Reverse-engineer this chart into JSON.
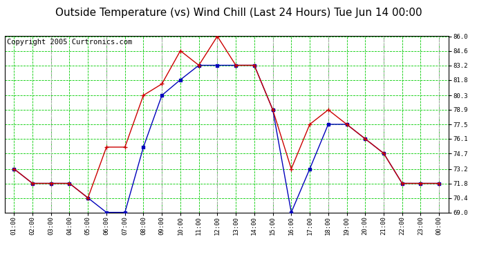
{
  "title": "Outside Temperature (vs) Wind Chill (Last 24 Hours) Tue Jun 14 00:00",
  "copyright": "Copyright 2005 Curtronics.com",
  "x_labels": [
    "01:00",
    "02:00",
    "03:00",
    "04:00",
    "05:00",
    "06:00",
    "07:00",
    "08:00",
    "09:00",
    "10:00",
    "11:00",
    "12:00",
    "13:00",
    "14:00",
    "15:00",
    "16:00",
    "17:00",
    "18:00",
    "19:00",
    "20:00",
    "21:00",
    "22:00",
    "23:00",
    "00:00"
  ],
  "blue_y": [
    73.2,
    71.8,
    71.8,
    71.8,
    70.4,
    69.0,
    69.0,
    75.3,
    80.3,
    81.8,
    83.2,
    83.2,
    83.2,
    83.2,
    78.9,
    69.0,
    73.2,
    77.5,
    77.5,
    76.1,
    74.7,
    71.8,
    71.8,
    71.8
  ],
  "red_y": [
    73.2,
    71.8,
    71.8,
    71.8,
    70.4,
    75.3,
    75.3,
    80.3,
    81.4,
    84.6,
    83.2,
    86.0,
    83.2,
    83.2,
    78.9,
    73.2,
    77.5,
    78.9,
    77.5,
    76.1,
    74.7,
    71.8,
    71.8,
    71.8
  ],
  "ylim": [
    69.0,
    86.0
  ],
  "yticks": [
    69.0,
    70.4,
    71.8,
    73.2,
    74.7,
    76.1,
    77.5,
    78.9,
    80.3,
    81.8,
    83.2,
    84.6,
    86.0
  ],
  "blue_color": "#0000bb",
  "red_color": "#cc0000",
  "background_color": "#ffffff",
  "grid_green": "#00cc00",
  "grid_gray": "#aaaaaa",
  "title_fontsize": 11,
  "copyright_fontsize": 7.5
}
